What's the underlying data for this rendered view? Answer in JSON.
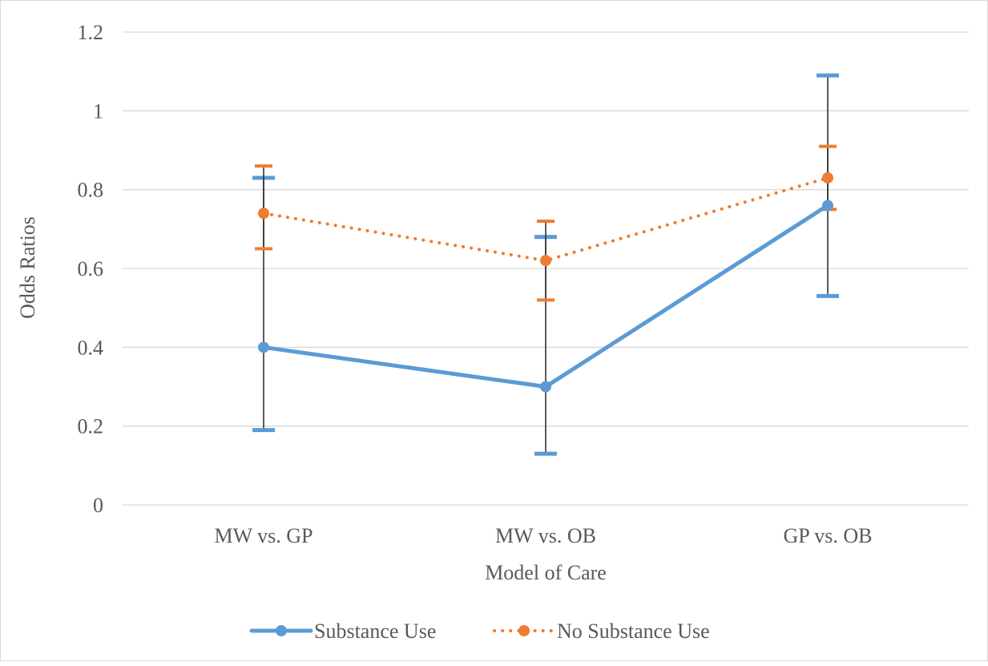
{
  "chart_data": {
    "type": "line",
    "title": "",
    "xlabel": "Model of Care",
    "ylabel": "Odds Ratios",
    "categories": [
      "MW vs. GP",
      "MW vs. OB",
      "GP vs. OB"
    ],
    "ylim": [
      0,
      1.2
    ],
    "yticks": [
      0,
      0.2,
      0.4,
      0.6,
      0.8,
      1,
      1.2
    ],
    "ytick_labels": [
      "0",
      "0.2",
      "0.4",
      "0.6",
      "0.8",
      "1",
      "1.2"
    ],
    "grid": true,
    "legend_position": "bottom",
    "series": [
      {
        "name": "Substance Use",
        "values": [
          0.4,
          0.3,
          0.76
        ],
        "ci_lower": [
          0.19,
          0.13,
          0.53
        ],
        "ci_upper": [
          0.83,
          0.68,
          1.09
        ],
        "color": "#5B9BD5",
        "line_style": "solid"
      },
      {
        "name": "No Substance Use",
        "values": [
          0.74,
          0.62,
          0.83
        ],
        "ci_lower": [
          0.65,
          0.52,
          0.75
        ],
        "ci_upper": [
          0.86,
          0.72,
          0.91
        ],
        "color": "#ED7D31",
        "line_style": "dotted"
      }
    ]
  }
}
